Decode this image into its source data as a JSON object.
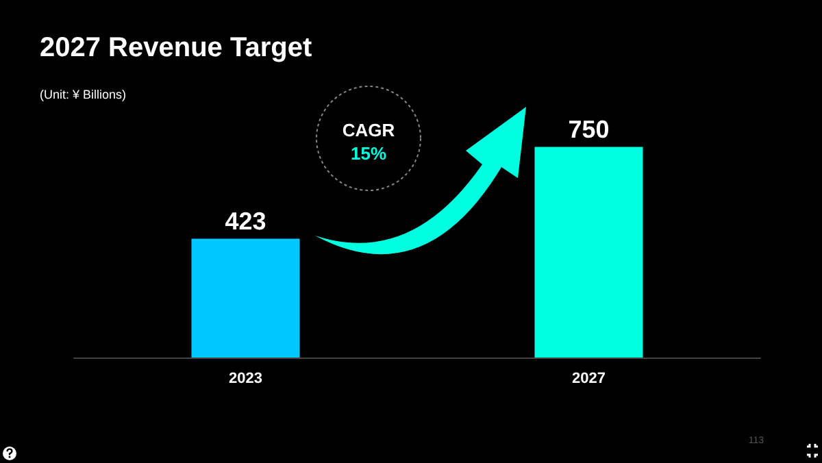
{
  "chart_data": {
    "type": "bar",
    "title": "2027 Revenue Target",
    "subtitle": "(Unit: ¥ Billions)",
    "categories": [
      "2023",
      "2027"
    ],
    "values": [
      423,
      750
    ],
    "colors": [
      "#00c8ff",
      "#00ffe0"
    ],
    "data_labels": true,
    "grid": false,
    "tick_labels": "x",
    "annotations": [
      "CAGR",
      "15%",
      "113"
    ]
  }
}
